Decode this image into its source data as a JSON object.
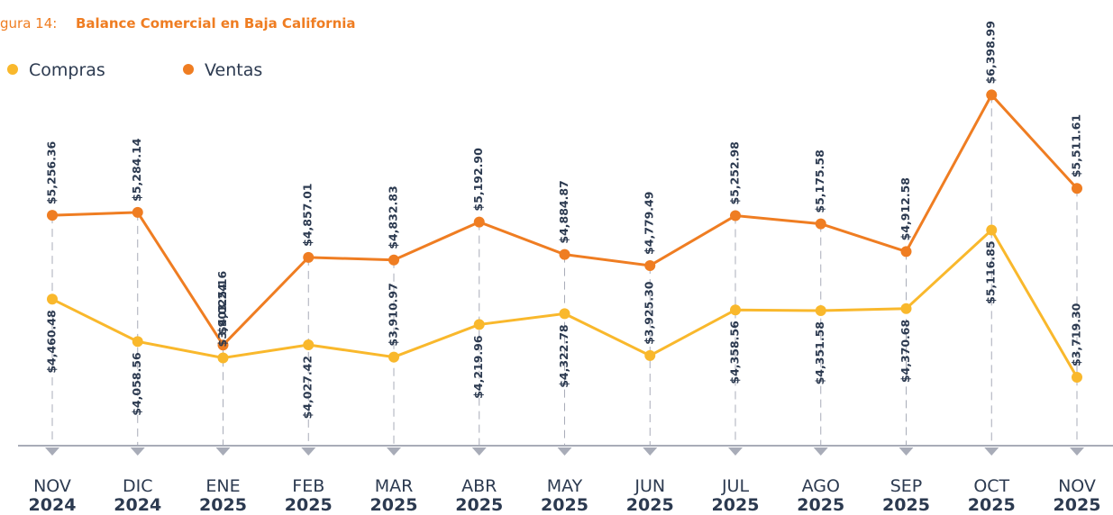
{
  "chart_data": {
    "type": "line",
    "title_prefix": "gura 14:",
    "title": "Balance Comercial en Baja California",
    "categories": [
      "NOV",
      "DIC",
      "ENE",
      "FEB",
      "MAR",
      "ABR",
      "MAY",
      "JUN",
      "JUL",
      "AGO",
      "SEP",
      "OCT",
      "NOV"
    ],
    "category_years": [
      "2024",
      "2024",
      "2025",
      "2025",
      "2025",
      "2025",
      "2025",
      "2025",
      "2025",
      "2025",
      "2025",
      "2025",
      "2025"
    ],
    "series": [
      {
        "name": "Compras",
        "color": "#f9b82c",
        "values": [
          4460.48,
          4058.56,
          3903.24,
          4027.42,
          3910.97,
          4219.96,
          4322.78,
          3925.3,
          4358.56,
          4351.58,
          4370.68,
          5116.85,
          3719.3
        ],
        "value_labels": [
          "$4,460.48",
          "$4,058.56",
          "$3,903.24",
          "$4,027.42",
          "$3,910.97",
          "$4,219.96",
          "$4,322.78",
          "$3,925.30",
          "$4,358.56",
          "$4,351.58",
          "$4,370.68",
          "$5,116.85",
          "$3,719.30"
        ]
      },
      {
        "name": "Ventas",
        "color": "#ef7d22",
        "values": [
          5256.36,
          5284.14,
          4025.16,
          4857.01,
          4832.83,
          5192.9,
          4884.87,
          4779.49,
          5252.98,
          5175.58,
          4912.58,
          6398.99,
          5511.61
        ],
        "value_labels": [
          "$5,256.36",
          "$5,284.14",
          "$4,025.16",
          "$4,857.01",
          "$4,832.83",
          "$5,192.90",
          "$4,884.87",
          "$4,779.49",
          "$5,252.98",
          "$5,175.58",
          "$4,912.58",
          "$6,398.99",
          "$5,511.61"
        ]
      }
    ],
    "ylim": [
      3070,
      7300
    ]
  }
}
